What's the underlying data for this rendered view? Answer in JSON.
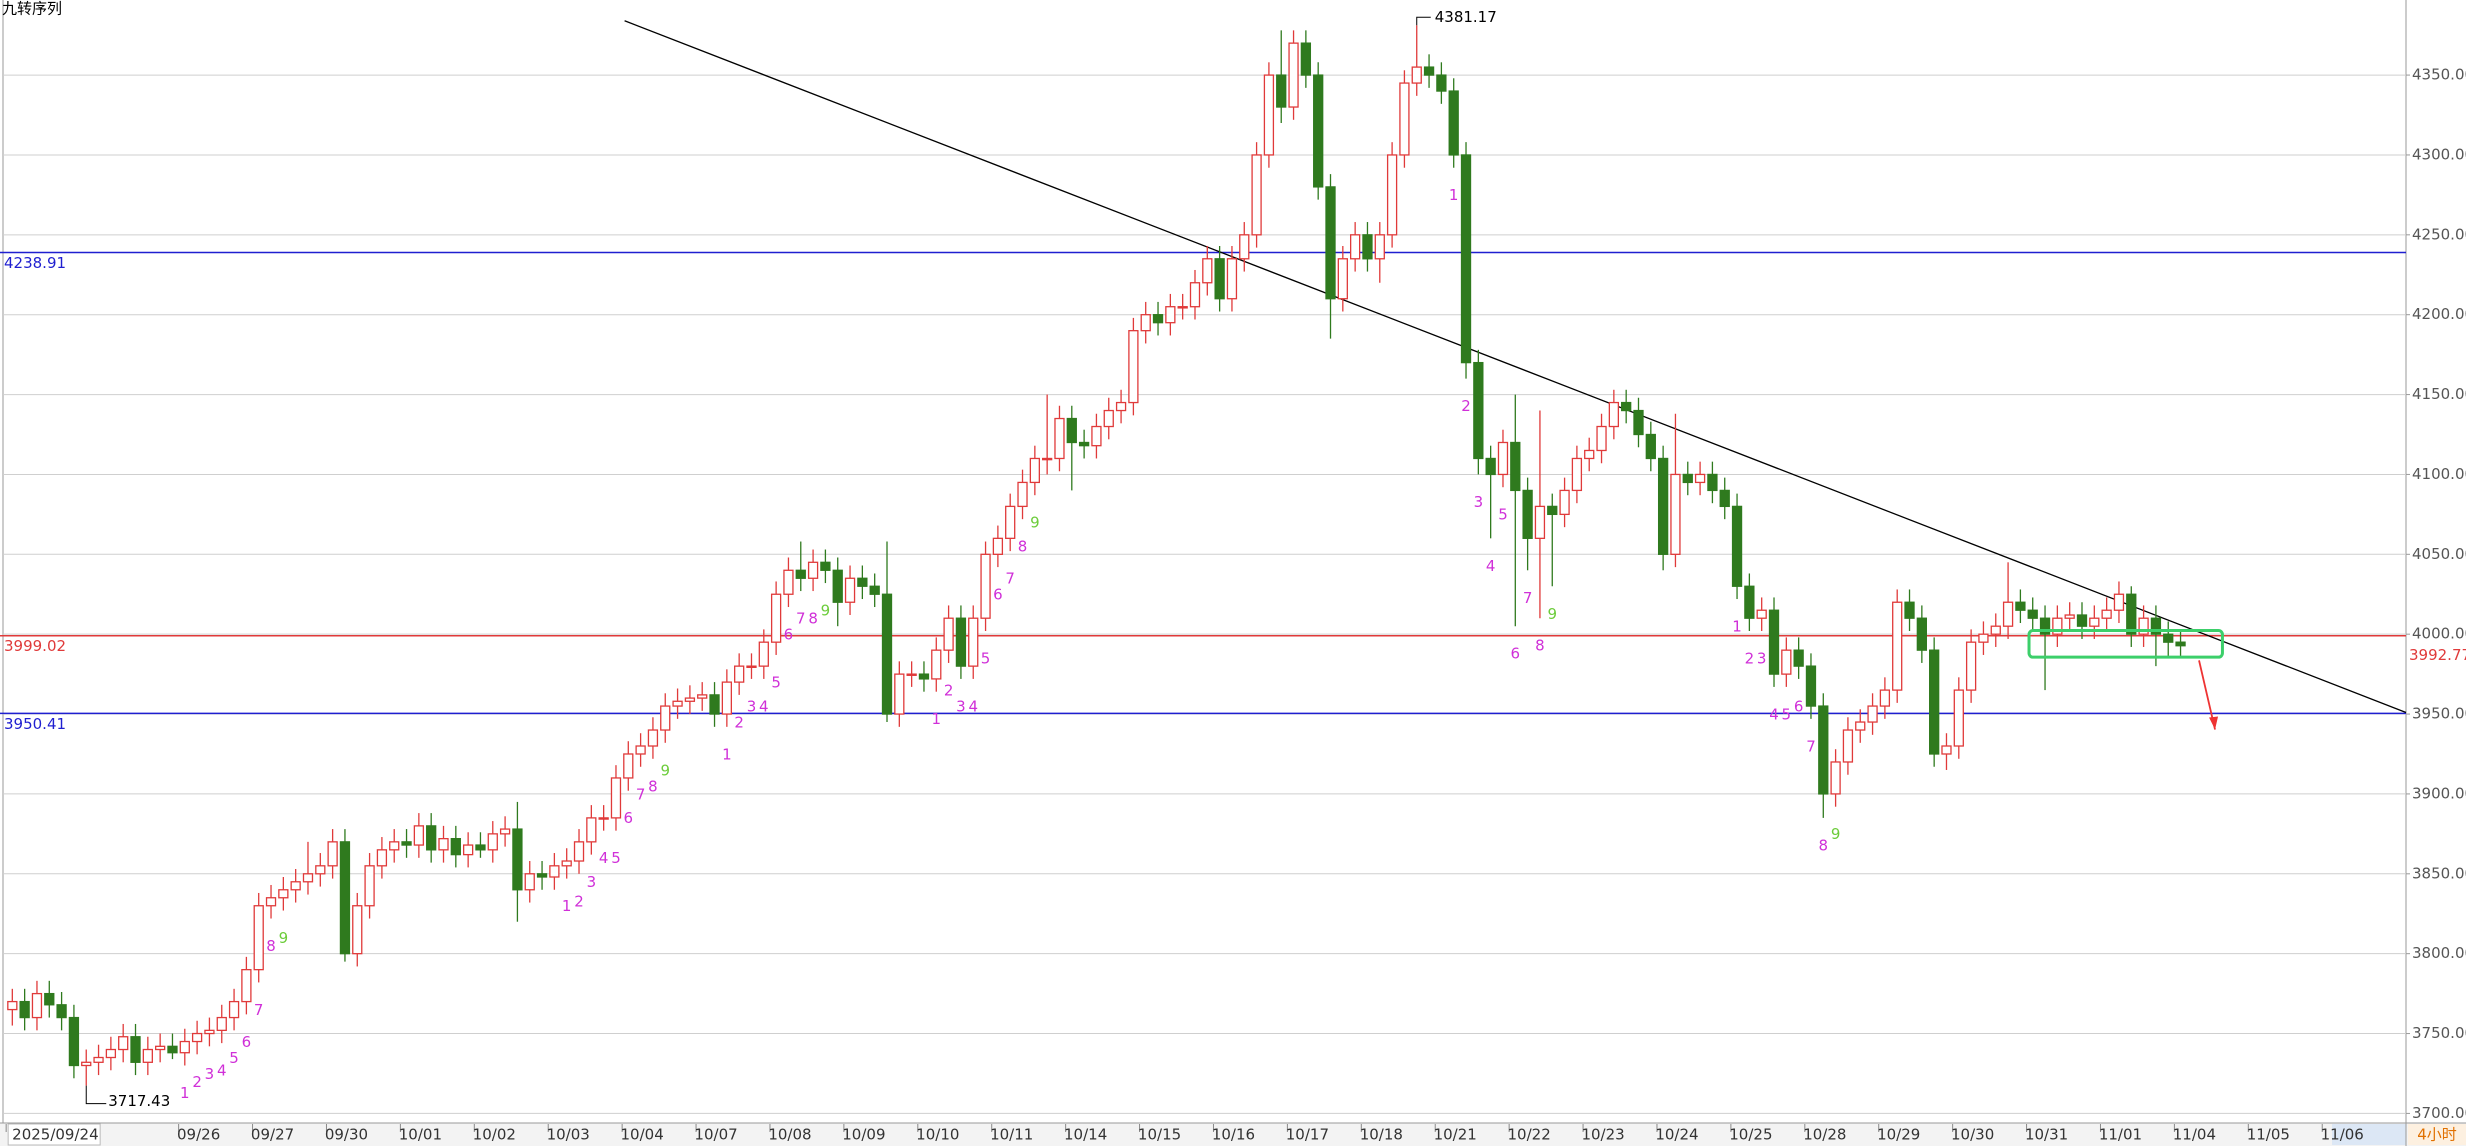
{
  "chart_data": {
    "type": "candlestick",
    "title": "九转序列",
    "interval_label": "4小时",
    "up_color": "#e03a3a",
    "down_color": "#2f7a1e",
    "grid": true,
    "xlim": [
      -1,
      194.3
    ],
    "ylim": [
      3694,
      4397
    ],
    "yticks": [
      {
        "value": 3700,
        "label": "3700.00"
      },
      {
        "value": 3750,
        "label": "3750.00"
      },
      {
        "value": 3800,
        "label": "3800.00"
      },
      {
        "value": 3850,
        "label": "3850.00"
      },
      {
        "value": 3900,
        "label": "3900.00"
      },
      {
        "value": 3950,
        "label": "3950.00"
      },
      {
        "value": 4000,
        "label": "4000.00"
      },
      {
        "value": 4050,
        "label": "4050.00"
      },
      {
        "value": 4100,
        "label": "4100.00"
      },
      {
        "value": 4150,
        "label": "4150.00"
      },
      {
        "value": 4200,
        "label": "4200.00"
      },
      {
        "value": 4250,
        "label": "4250.00"
      },
      {
        "value": 4300,
        "label": "4300.00"
      },
      {
        "value": 4350,
        "label": "4350.00"
      }
    ],
    "xticks": [
      {
        "value": -0.5,
        "label": "2025/09/24"
      },
      {
        "value": 13.5,
        "label": "09/26"
      },
      {
        "value": 19.5,
        "label": "09/27"
      },
      {
        "value": 25.5,
        "label": "09/30"
      },
      {
        "value": 31.5,
        "label": "10/01"
      },
      {
        "value": 37.5,
        "label": "10/02"
      },
      {
        "value": 43.5,
        "label": "10/03"
      },
      {
        "value": 49.5,
        "label": "10/04"
      },
      {
        "value": 55.5,
        "label": "10/07"
      },
      {
        "value": 61.5,
        "label": "10/08"
      },
      {
        "value": 67.5,
        "label": "10/09"
      },
      {
        "value": 73.5,
        "label": "10/10"
      },
      {
        "value": 79.5,
        "label": "10/11"
      },
      {
        "value": 85.5,
        "label": "10/14"
      },
      {
        "value": 91.5,
        "label": "10/15"
      },
      {
        "value": 97.5,
        "label": "10/16"
      },
      {
        "value": 103.5,
        "label": "10/17"
      },
      {
        "value": 109.5,
        "label": "10/18"
      },
      {
        "value": 115.5,
        "label": "10/21"
      },
      {
        "value": 121.5,
        "label": "10/22"
      },
      {
        "value": 127.5,
        "label": "10/23"
      },
      {
        "value": 133.5,
        "label": "10/24"
      },
      {
        "value": 139.5,
        "label": "10/25"
      },
      {
        "value": 145.5,
        "label": "10/28"
      },
      {
        "value": 151.5,
        "label": "10/29"
      },
      {
        "value": 157.5,
        "label": "10/30"
      },
      {
        "value": 163.5,
        "label": "10/31"
      },
      {
        "value": 169.5,
        "label": "11/01"
      },
      {
        "value": 175.5,
        "label": "11/04"
      },
      {
        "value": 181.5,
        "label": "11/05"
      },
      {
        "value": 187.5,
        "label": "11/06"
      }
    ],
    "open": [
      3765,
      3770,
      3760,
      3775,
      3768,
      3760,
      3730,
      3732,
      3735,
      3740,
      3748,
      3732,
      3740,
      3742,
      3738,
      3745,
      3750,
      3752,
      3760,
      3770,
      3790,
      3830,
      3835,
      3840,
      3845,
      3850,
      3855,
      3870,
      3800,
      3830,
      3855,
      3865,
      3870,
      3868,
      3880,
      3865,
      3872,
      3862,
      3868,
      3865,
      3875,
      3878,
      3840,
      3850,
      3848,
      3855,
      3858,
      3870,
      3885,
      3885,
      3910,
      3925,
      3930,
      3940,
      3955,
      3958,
      3960,
      3962,
      3950,
      3970,
      3980,
      3980,
      3995,
      4025,
      4040,
      4035,
      4045,
      4040,
      4020,
      4035,
      4030,
      4025,
      3950,
      3975,
      3975,
      3972,
      3990,
      4010,
      3980,
      4010,
      4050,
      4060,
      4080,
      4095,
      4110,
      4110,
      4135,
      4120,
      4118,
      4130,
      4140,
      4145,
      4190,
      4200,
      4195,
      4205,
      4205,
      4220,
      4235,
      4210,
      4235,
      4250,
      4300,
      4350,
      4330,
      4370,
      4350,
      4280,
      4210,
      4235,
      4250,
      4235,
      4250,
      4300,
      4345,
      4355,
      4350,
      4340,
      4300,
      4170,
      4110,
      4100,
      4120,
      4090,
      4060,
      4080,
      4075,
      4090,
      4110,
      4115,
      4130,
      4145,
      4140,
      4125,
      4110,
      4050,
      4100,
      4095,
      4100,
      4090,
      4080,
      4030,
      4010,
      4015,
      3975,
      3990,
      3980,
      3955,
      3900,
      3920,
      3940,
      3945,
      3955,
      3965,
      4020,
      4010,
      3990,
      3925,
      3930,
      3965,
      3995,
      4000,
      4005,
      4020,
      4015,
      4010,
      4000,
      4010,
      4012,
      4005,
      4010,
      4015,
      4025,
      4000,
      4010,
      4000,
      3995
    ],
    "high": [
      3778,
      3778,
      3783,
      3783,
      3776,
      3768,
      3740,
      3743,
      3748,
      3756,
      3756,
      3748,
      3750,
      3750,
      3753,
      3758,
      3760,
      3768,
      3778,
      3798,
      3838,
      3843,
      3848,
      3853,
      3870,
      3863,
      3878,
      3878,
      3838,
      3863,
      3873,
      3878,
      3878,
      3888,
      3888,
      3880,
      3880,
      3876,
      3876,
      3883,
      3886,
      3895,
      3858,
      3858,
      3863,
      3866,
      3878,
      3893,
      3893,
      3918,
      3933,
      3938,
      3948,
      3963,
      3966,
      3968,
      3970,
      3970,
      3978,
      3988,
      3988,
      4003,
      4033,
      4048,
      4058,
      4053,
      4053,
      4048,
      4043,
      4043,
      4038,
      4058,
      3983,
      3983,
      3983,
      3998,
      4018,
      4018,
      4018,
      4058,
      4068,
      4088,
      4103,
      4118,
      4150,
      4143,
      4143,
      4128,
      4138,
      4148,
      4153,
      4198,
      4208,
      4208,
      4213,
      4213,
      4228,
      4243,
      4243,
      4243,
      4258,
      4308,
      4358,
      4378,
      4378,
      4378,
      4358,
      4288,
      4243,
      4258,
      4258,
      4258,
      4308,
      4353,
      4381.17,
      4363,
      4358,
      4348,
      4308,
      4178,
      4118,
      4128,
      4150,
      4098,
      4140,
      4088,
      4098,
      4118,
      4123,
      4138,
      4153,
      4153,
      4148,
      4133,
      4118,
      4138,
      4108,
      4108,
      4108,
      4098,
      4088,
      4038,
      4023,
      4023,
      3998,
      3998,
      3988,
      3963,
      3928,
      3948,
      3953,
      3963,
      3973,
      4028,
      4028,
      4018,
      3998,
      3938,
      3973,
      4003,
      4008,
      4013,
      4045,
      4028,
      4023,
      4018,
      4018,
      4020,
      4020,
      4018,
      4023,
      4033,
      4030,
      4018,
      4018,
      4008,
      4003
    ],
    "low": [
      3755,
      3752,
      3752,
      3760,
      3752,
      3722,
      3717.43,
      3724,
      3727,
      3732,
      3724,
      3724,
      3732,
      3734,
      3730,
      3737,
      3742,
      3744,
      3752,
      3762,
      3782,
      3822,
      3827,
      3832,
      3837,
      3842,
      3847,
      3795,
      3792,
      3822,
      3847,
      3857,
      3860,
      3860,
      3857,
      3857,
      3854,
      3854,
      3860,
      3857,
      3867,
      3820,
      3832,
      3840,
      3840,
      3847,
      3850,
      3862,
      3877,
      3877,
      3902,
      3917,
      3922,
      3932,
      3947,
      3950,
      3952,
      3942,
      3942,
      3962,
      3972,
      3972,
      3987,
      4017,
      4027,
      4027,
      4032,
      4005,
      4012,
      4022,
      4017,
      3945,
      3942,
      3967,
      3964,
      3964,
      3982,
      3972,
      3972,
      4002,
      4042,
      4052,
      4072,
      4087,
      4100,
      4102,
      4090,
      4110,
      4110,
      4122,
      4132,
      4137,
      4182,
      4187,
      4187,
      4197,
      4197,
      4212,
      4202,
      4202,
      4227,
      4242,
      4292,
      4320,
      4322,
      4342,
      4272,
      4185,
      4202,
      4227,
      4227,
      4220,
      4242,
      4292,
      4337,
      4342,
      4332,
      4292,
      4160,
      4100,
      4060,
      4092,
      4005,
      4040,
      4010,
      4030,
      4067,
      4082,
      4102,
      4107,
      4122,
      4132,
      4117,
      4102,
      4040,
      4042,
      4087,
      4087,
      4082,
      4072,
      4022,
      4002,
      4002,
      3967,
      3967,
      3972,
      3947,
      3885,
      3892,
      3912,
      3932,
      3937,
      3947,
      3957,
      4002,
      3982,
      3917,
      3915,
      3922,
      3957,
      3987,
      3992,
      3997,
      4007,
      4002,
      3965,
      3992,
      4002,
      3997,
      3997,
      4002,
      4007,
      3992,
      3992,
      3980,
      3985,
      3985
    ],
    "close": [
      3770,
      3760,
      3775,
      3768,
      3760,
      3730,
      3732,
      3735,
      3740,
      3748,
      3732,
      3740,
      3742,
      3738,
      3745,
      3750,
      3752,
      3760,
      3770,
      3790,
      3830,
      3835,
      3840,
      3845,
      3850,
      3855,
      3870,
      3800,
      3830,
      3855,
      3865,
      3870,
      3868,
      3880,
      3865,
      3872,
      3862,
      3868,
      3865,
      3875,
      3878,
      3840,
      3850,
      3848,
      3855,
      3858,
      3870,
      3885,
      3885,
      3910,
      3925,
      3930,
      3940,
      3955,
      3958,
      3960,
      3962,
      3950,
      3970,
      3980,
      3980,
      3995,
      4025,
      4040,
      4035,
      4045,
      4040,
      4020,
      4035,
      4030,
      4025,
      3950,
      3975,
      3975,
      3972,
      3990,
      4010,
      3980,
      4010,
      4050,
      4060,
      4080,
      4095,
      4110,
      4110,
      4135,
      4120,
      4118,
      4130,
      4140,
      4145,
      4190,
      4200,
      4195,
      4205,
      4205,
      4220,
      4235,
      4210,
      4235,
      4250,
      4300,
      4350,
      4330,
      4370,
      4350,
      4280,
      4210,
      4235,
      4250,
      4235,
      4250,
      4300,
      4345,
      4355,
      4350,
      4340,
      4300,
      4170,
      4110,
      4100,
      4120,
      4090,
      4060,
      4080,
      4075,
      4090,
      4110,
      4115,
      4130,
      4145,
      4140,
      4125,
      4110,
      4050,
      4100,
      4095,
      4100,
      4090,
      4080,
      4030,
      4010,
      4015,
      3975,
      3990,
      3980,
      3955,
      3900,
      3920,
      3940,
      3945,
      3955,
      3965,
      4020,
      4010,
      3990,
      3925,
      3930,
      3965,
      3995,
      4000,
      4005,
      4020,
      4015,
      4010,
      4000,
      4010,
      4012,
      4005,
      4010,
      4015,
      4025,
      4000,
      4010,
      4000,
      3995,
      3992.77
    ],
    "max_index": 114,
    "min_index": 6,
    "hlines": [
      {
        "value": 4238.91,
        "color": "#1f1fd0"
      },
      {
        "value": 3999.02,
        "color": "#e03a3a"
      },
      {
        "value": 3950.41,
        "color": "#1f1fd0"
      }
    ],
    "trend_line": {
      "from": [
        49.7,
        4384
      ],
      "to": [
        194.3,
        3951
      ],
      "color": "#000000"
    },
    "box": {
      "x": [
        163.7,
        179.4
      ],
      "y": [
        3985.6,
        4002.3
      ],
      "color": "#3ccf6a"
    },
    "arrow": {
      "from": [
        177.5,
        3983.6
      ],
      "to": [
        178.8,
        3940.3
      ],
      "color": "#ee3333"
    },
    "td_color": "#d030d8",
    "td9_color": "#6ccc3a",
    "td": [
      {
        "i": 14,
        "n": 1
      },
      {
        "i": 15,
        "n": 2
      },
      {
        "i": 16,
        "n": 3
      },
      {
        "i": 17,
        "n": 4
      },
      {
        "i": 18,
        "n": 5
      },
      {
        "i": 19,
        "n": 6
      },
      {
        "i": 20,
        "n": 7
      },
      {
        "i": 21,
        "n": 8
      },
      {
        "i": 22,
        "n": 9
      },
      {
        "i": 45,
        "n": 1
      },
      {
        "i": 46,
        "n": 2
      },
      {
        "i": 47,
        "n": 3
      },
      {
        "i": 48,
        "n": 4
      },
      {
        "i": 49,
        "n": 5
      },
      {
        "i": 50,
        "n": 6
      },
      {
        "i": 51,
        "n": 7
      },
      {
        "i": 52,
        "n": 8
      },
      {
        "i": 53,
        "n": 9
      },
      {
        "i": 58,
        "n": 1
      },
      {
        "i": 59,
        "n": 2
      },
      {
        "i": 60,
        "n": 3
      },
      {
        "i": 61,
        "n": 4
      },
      {
        "i": 62,
        "n": 5
      },
      {
        "i": 63,
        "n": 6
      },
      {
        "i": 64,
        "n": 7
      },
      {
        "i": 65,
        "n": 8
      },
      {
        "i": 66,
        "n": 9
      },
      {
        "i": 75,
        "n": 1
      },
      {
        "i": 76,
        "n": 2
      },
      {
        "i": 77,
        "n": 3
      },
      {
        "i": 78,
        "n": 4
      },
      {
        "i": 79,
        "n": 5
      },
      {
        "i": 80,
        "n": 6
      },
      {
        "i": 81,
        "n": 7
      },
      {
        "i": 82,
        "n": 8
      },
      {
        "i": 83,
        "n": 9
      },
      {
        "i": 117,
        "n": 1
      },
      {
        "i": 118,
        "n": 2
      },
      {
        "i": 119,
        "n": 3
      },
      {
        "i": 120,
        "n": 4
      },
      {
        "i": 121,
        "n": 5
      },
      {
        "i": 122,
        "n": 6
      },
      {
        "i": 123,
        "n": 7
      },
      {
        "i": 124,
        "n": 8
      },
      {
        "i": 125,
        "n": 9
      },
      {
        "i": 140,
        "n": 1
      },
      {
        "i": 141,
        "n": 2
      },
      {
        "i": 142,
        "n": 3
      },
      {
        "i": 143,
        "n": 4
      },
      {
        "i": 144,
        "n": 5
      },
      {
        "i": 145,
        "n": 6
      },
      {
        "i": 146,
        "n": 7
      },
      {
        "i": 147,
        "n": 8
      },
      {
        "i": 148,
        "n": 9
      }
    ]
  }
}
